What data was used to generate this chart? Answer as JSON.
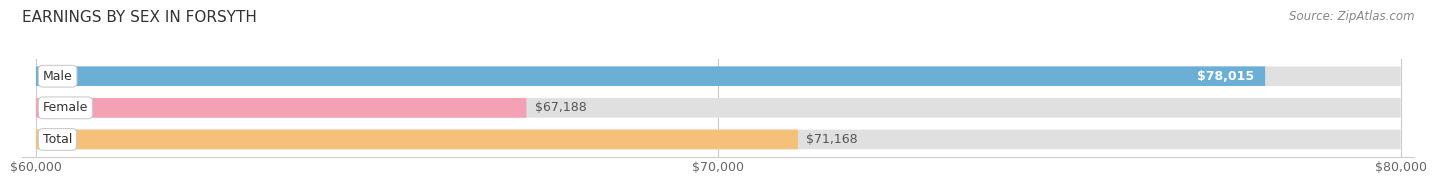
{
  "title": "EARNINGS BY SEX IN FORSYTH",
  "source": "Source: ZipAtlas.com",
  "categories": [
    "Male",
    "Female",
    "Total"
  ],
  "values": [
    78015,
    67188,
    71168
  ],
  "bar_colors": [
    "#6baed6",
    "#f4a0b5",
    "#f5c07a"
  ],
  "bar_bg_color": "#e0e0e0",
  "xmin": 60000,
  "xmax": 80000,
  "xticks": [
    60000,
    70000,
    80000
  ],
  "xtick_labels": [
    "$60,000",
    "$70,000",
    "$80,000"
  ],
  "value_labels": [
    "$78,015",
    "$67,188",
    "$71,168"
  ],
  "title_fontsize": 11,
  "source_fontsize": 8.5,
  "tick_fontsize": 9,
  "bar_label_fontsize": 9,
  "cat_label_fontsize": 9,
  "background_color": "#ffffff"
}
